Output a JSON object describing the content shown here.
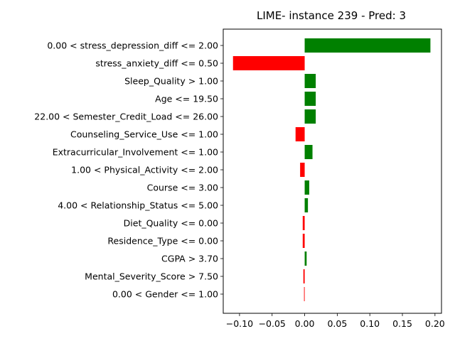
{
  "chart_data": {
    "type": "bar",
    "orientation": "horizontal",
    "title": "LIME- instance 239 - Pred: 3",
    "xlabel": "",
    "ylabel": "",
    "xlim": [
      -0.125,
      0.21
    ],
    "xticks": [
      -0.1,
      -0.05,
      0.0,
      0.05,
      0.1,
      0.15,
      0.2
    ],
    "xtick_labels": [
      "−0.10",
      "−0.05",
      "0.00",
      "0.05",
      "0.10",
      "0.15",
      "0.20"
    ],
    "grid": false,
    "positive_color": "#008000",
    "negative_color": "#ff0000",
    "categories": [
      "0.00 < stress_depression_diff <= 2.00",
      "stress_anxiety_diff <= 0.50",
      "Sleep_Quality > 1.00",
      "Age <= 19.50",
      "22.00 < Semester_Credit_Load <= 26.00",
      "Counseling_Service_Use <= 1.00",
      "Extracurricular_Involvement <= 1.00",
      "1.00 < Physical_Activity <= 2.00",
      "Course <= 3.00",
      "4.00 < Relationship_Status <= 5.00",
      "Diet_Quality <= 0.00",
      "Residence_Type <= 0.00",
      "CGPA > 3.70",
      "Mental_Severity_Score > 7.50",
      "0.00 < Gender <= 1.00"
    ],
    "values": [
      0.193,
      -0.11,
      0.017,
      0.017,
      0.017,
      -0.014,
      0.012,
      -0.007,
      0.007,
      0.005,
      -0.003,
      -0.003,
      0.003,
      -0.002,
      -0.001
    ]
  }
}
